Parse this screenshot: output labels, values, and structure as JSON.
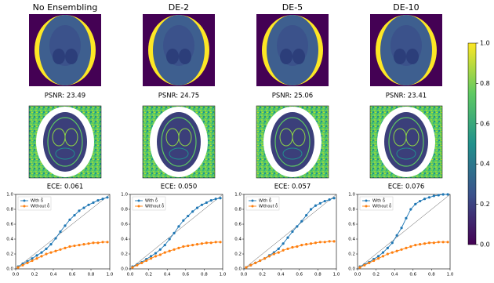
{
  "chart_data": [
    {
      "type": "line",
      "title": "No Ensembling",
      "psnr": "PSNR: 23.49",
      "ece": "ECE: 0.061",
      "x": [
        0.025,
        0.075,
        0.125,
        0.175,
        0.225,
        0.275,
        0.325,
        0.375,
        0.425,
        0.475,
        0.525,
        0.575,
        0.625,
        0.675,
        0.725,
        0.775,
        0.825,
        0.875,
        0.925,
        0.975
      ],
      "series": [
        {
          "name": "With δ̂",
          "color": "#1f77b4",
          "values": [
            0.03,
            0.07,
            0.1,
            0.14,
            0.18,
            0.22,
            0.27,
            0.33,
            0.41,
            0.5,
            0.58,
            0.66,
            0.72,
            0.78,
            0.82,
            0.86,
            0.89,
            0.92,
            0.94,
            0.96
          ]
        },
        {
          "name": "Without δ̂",
          "color": "#ff7f0e",
          "values": [
            0.02,
            0.05,
            0.08,
            0.11,
            0.14,
            0.17,
            0.2,
            0.22,
            0.24,
            0.26,
            0.28,
            0.3,
            0.31,
            0.32,
            0.33,
            0.34,
            0.35,
            0.35,
            0.36,
            0.36
          ]
        }
      ],
      "xlim": [
        0,
        1
      ],
      "ylim": [
        0,
        1
      ],
      "xticks": [
        {
          "value": 0,
          "label": "0.0"
        },
        {
          "value": 0.2,
          "label": "0.2"
        },
        {
          "value": 0.4,
          "label": "0.4"
        },
        {
          "value": 0.6,
          "label": "0.6"
        },
        {
          "value": 0.8,
          "label": "0.8"
        },
        {
          "value": 1,
          "label": "1.0"
        }
      ],
      "yticks": [
        {
          "value": 0,
          "label": "0.0"
        },
        {
          "value": 0.2,
          "label": "0.2"
        },
        {
          "value": 0.4,
          "label": "0.4"
        },
        {
          "value": 0.6,
          "label": "0.6"
        },
        {
          "value": 0.8,
          "label": "0.8"
        },
        {
          "value": 1,
          "label": "1.0"
        }
      ],
      "legend": "upper left"
    },
    {
      "type": "line",
      "title": "DE-2",
      "psnr": "PSNR: 24.75",
      "ece": "ECE: 0.050",
      "x": [
        0.025,
        0.075,
        0.125,
        0.175,
        0.225,
        0.275,
        0.325,
        0.375,
        0.425,
        0.475,
        0.525,
        0.575,
        0.625,
        0.675,
        0.725,
        0.775,
        0.825,
        0.875,
        0.925,
        0.975
      ],
      "series": [
        {
          "name": "With δ̂",
          "color": "#1f77b4",
          "values": [
            0.03,
            0.06,
            0.09,
            0.13,
            0.17,
            0.21,
            0.26,
            0.32,
            0.4,
            0.48,
            0.57,
            0.65,
            0.71,
            0.77,
            0.82,
            0.86,
            0.89,
            0.92,
            0.94,
            0.95
          ]
        },
        {
          "name": "Without δ̂",
          "color": "#ff7f0e",
          "values": [
            0.02,
            0.05,
            0.08,
            0.11,
            0.14,
            0.17,
            0.19,
            0.22,
            0.24,
            0.26,
            0.28,
            0.3,
            0.31,
            0.32,
            0.33,
            0.34,
            0.35,
            0.35,
            0.36,
            0.36
          ]
        }
      ],
      "xlim": [
        0,
        1
      ],
      "ylim": [
        0,
        1
      ],
      "xticks": [
        {
          "value": 0,
          "label": "0.0"
        },
        {
          "value": 0.2,
          "label": "0.2"
        },
        {
          "value": 0.4,
          "label": "0.4"
        },
        {
          "value": 0.6,
          "label": "0.6"
        },
        {
          "value": 0.8,
          "label": "0.8"
        },
        {
          "value": 1,
          "label": "1.0"
        }
      ],
      "yticks": [
        {
          "value": 0,
          "label": "0.0"
        },
        {
          "value": 0.2,
          "label": "0.2"
        },
        {
          "value": 0.4,
          "label": "0.4"
        },
        {
          "value": 0.6,
          "label": "0.6"
        },
        {
          "value": 0.8,
          "label": "0.8"
        },
        {
          "value": 1,
          "label": "1.0"
        }
      ],
      "legend": "upper left"
    },
    {
      "type": "line",
      "title": "DE-5",
      "psnr": "PSNR: 25.06",
      "ece": "ECE: 0.057",
      "x": [
        0.025,
        0.075,
        0.125,
        0.175,
        0.225,
        0.275,
        0.325,
        0.375,
        0.425,
        0.475,
        0.525,
        0.575,
        0.625,
        0.675,
        0.725,
        0.775,
        0.825,
        0.875,
        0.925,
        0.975
      ],
      "series": [
        {
          "name": "With δ̂",
          "color": "#1f77b4",
          "values": [
            0.02,
            0.05,
            0.08,
            0.11,
            0.14,
            0.18,
            0.22,
            0.27,
            0.34,
            0.42,
            0.5,
            0.57,
            0.64,
            0.72,
            0.8,
            0.85,
            0.88,
            0.91,
            0.93,
            0.95
          ]
        },
        {
          "name": "Without δ̂",
          "color": "#ff7f0e",
          "values": [
            0.02,
            0.05,
            0.08,
            0.11,
            0.14,
            0.17,
            0.2,
            0.22,
            0.25,
            0.27,
            0.29,
            0.3,
            0.32,
            0.33,
            0.34,
            0.35,
            0.36,
            0.36,
            0.37,
            0.37
          ]
        }
      ],
      "xlim": [
        0,
        1
      ],
      "ylim": [
        0,
        1
      ],
      "xticks": [
        {
          "value": 0,
          "label": "0.0"
        },
        {
          "value": 0.2,
          "label": "0.2"
        },
        {
          "value": 0.4,
          "label": "0.4"
        },
        {
          "value": 0.6,
          "label": "0.6"
        },
        {
          "value": 0.8,
          "label": "0.8"
        },
        {
          "value": 1,
          "label": "1.0"
        }
      ],
      "yticks": [
        {
          "value": 0,
          "label": "0.0"
        },
        {
          "value": 0.2,
          "label": "0.2"
        },
        {
          "value": 0.4,
          "label": "0.4"
        },
        {
          "value": 0.6,
          "label": "0.6"
        },
        {
          "value": 0.8,
          "label": "0.8"
        },
        {
          "value": 1,
          "label": "1.0"
        }
      ],
      "legend": "upper left"
    },
    {
      "type": "line",
      "title": "DE-10",
      "psnr": "PSNR: 23.41",
      "ece": "ECE: 0.076",
      "x": [
        0.025,
        0.075,
        0.125,
        0.175,
        0.225,
        0.275,
        0.325,
        0.375,
        0.425,
        0.475,
        0.525,
        0.575,
        0.625,
        0.675,
        0.725,
        0.775,
        0.825,
        0.875,
        0.925,
        0.975
      ],
      "series": [
        {
          "name": "With δ̂",
          "color": "#1f77b4",
          "values": [
            0.03,
            0.06,
            0.09,
            0.13,
            0.17,
            0.22,
            0.28,
            0.35,
            0.45,
            0.55,
            0.68,
            0.8,
            0.87,
            0.91,
            0.94,
            0.96,
            0.98,
            0.99,
            1.0,
            1.0
          ]
        },
        {
          "name": "Without δ̂",
          "color": "#ff7f0e",
          "values": [
            0.02,
            0.05,
            0.08,
            0.11,
            0.14,
            0.17,
            0.2,
            0.22,
            0.24,
            0.26,
            0.28,
            0.3,
            0.32,
            0.33,
            0.34,
            0.35,
            0.35,
            0.36,
            0.36,
            0.36
          ]
        }
      ],
      "xlim": [
        0,
        1
      ],
      "ylim": [
        0,
        1
      ],
      "xticks": [
        {
          "value": 0,
          "label": "0.0"
        },
        {
          "value": 0.2,
          "label": "0.2"
        },
        {
          "value": 0.4,
          "label": "0.4"
        },
        {
          "value": 0.6,
          "label": "0.6"
        },
        {
          "value": 0.8,
          "label": "0.8"
        },
        {
          "value": 1,
          "label": "1.0"
        }
      ],
      "yticks": [
        {
          "value": 0,
          "label": "0.0"
        },
        {
          "value": 0.2,
          "label": "0.2"
        },
        {
          "value": 0.4,
          "label": "0.4"
        },
        {
          "value": 0.6,
          "label": "0.6"
        },
        {
          "value": 0.8,
          "label": "0.8"
        },
        {
          "value": 1,
          "label": "1.0"
        }
      ],
      "legend": "upper left"
    }
  ],
  "colorbar": {
    "ylim": [
      0,
      1
    ],
    "yticks": [
      {
        "value": 0,
        "label": "0.0"
      },
      {
        "value": 0.2,
        "label": "0.2"
      },
      {
        "value": 0.4,
        "label": "0.4"
      },
      {
        "value": 0.6,
        "label": "0.6"
      },
      {
        "value": 0.8,
        "label": "0.8"
      },
      {
        "value": 1,
        "label": "1.0"
      }
    ]
  }
}
